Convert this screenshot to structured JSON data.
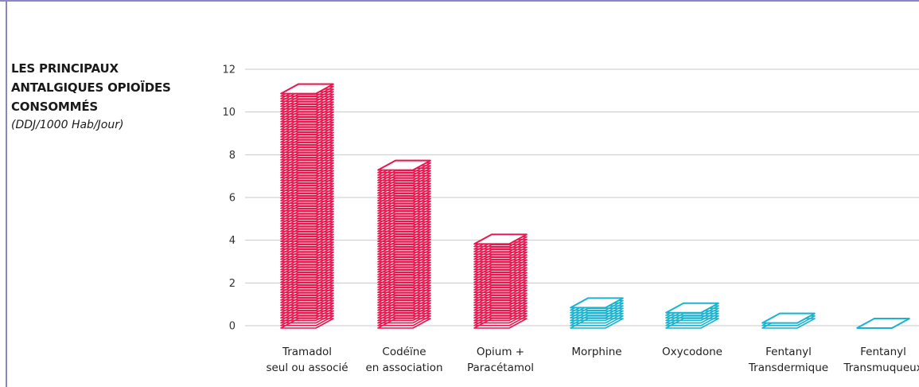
{
  "chart_data": {
    "type": "bar",
    "title_lines": [
      "LES PRINCIPAUX",
      "ANTALGIQUES OPIOÏDES",
      "CONSOMMÉS"
    ],
    "subtitle": "(DDJ/1000 Hab/Jour)",
    "categories": [
      [
        "Tramadol",
        "seul ou associé"
      ],
      [
        "Codéïne",
        "en association"
      ],
      [
        "Opium +",
        "Paracétamol"
      ],
      [
        "Morphine"
      ],
      [
        "Oxycodone"
      ],
      [
        "Fentanyl",
        "Transdermique"
      ],
      [
        "Fentanyl",
        "Transmuqueux"
      ]
    ],
    "values": [
      11.0,
      7.4,
      3.9,
      0.9,
      0.7,
      0.2,
      0.05
    ],
    "colors": [
      "#e8174f",
      "#e8174f",
      "#e8174f",
      "#1bb3cf",
      "#1bb3cf",
      "#1bb3cf",
      "#1bb3cf"
    ],
    "yticks": [
      0,
      2,
      4,
      6,
      8,
      10,
      12
    ],
    "ylim": [
      0,
      12
    ],
    "grid": true,
    "legend": "none"
  }
}
